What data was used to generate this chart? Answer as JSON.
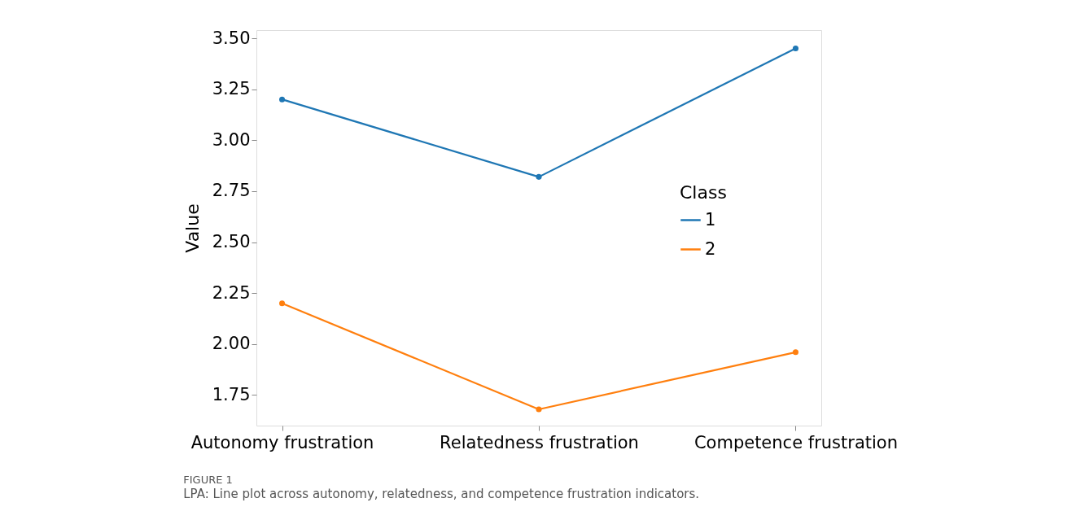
{
  "chart_data": {
    "type": "line",
    "ylabel": "Value",
    "legend_title": "Class",
    "legend": "right",
    "marker": "circle",
    "line_style": "solid",
    "grid": false,
    "categories": [
      "Autonomy frustration",
      "Relatedness frustration",
      "Competence frustration"
    ],
    "ylim": [
      1.6,
      3.54
    ],
    "yticks": [
      {
        "value": 1.75,
        "label": "1.75"
      },
      {
        "value": 2.0,
        "label": "2.00"
      },
      {
        "value": 2.25,
        "label": "2.25"
      },
      {
        "value": 2.5,
        "label": "2.50"
      },
      {
        "value": 2.75,
        "label": "2.75"
      },
      {
        "value": 3.0,
        "label": "3.00"
      },
      {
        "value": 3.25,
        "label": "3.25"
      },
      {
        "value": 3.5,
        "label": "3.50"
      }
    ],
    "series": [
      {
        "name": "1",
        "color": "#1f77b4",
        "values": [
          3.2,
          2.82,
          3.45
        ]
      },
      {
        "name": "2",
        "color": "#ff7f0e",
        "values": [
          2.2,
          1.68,
          1.96
        ]
      }
    ],
    "annotations": [
      "FIGURE 1",
      "LPA: Line plot across autonomy, relatedness, and competence frustration indicators."
    ]
  }
}
